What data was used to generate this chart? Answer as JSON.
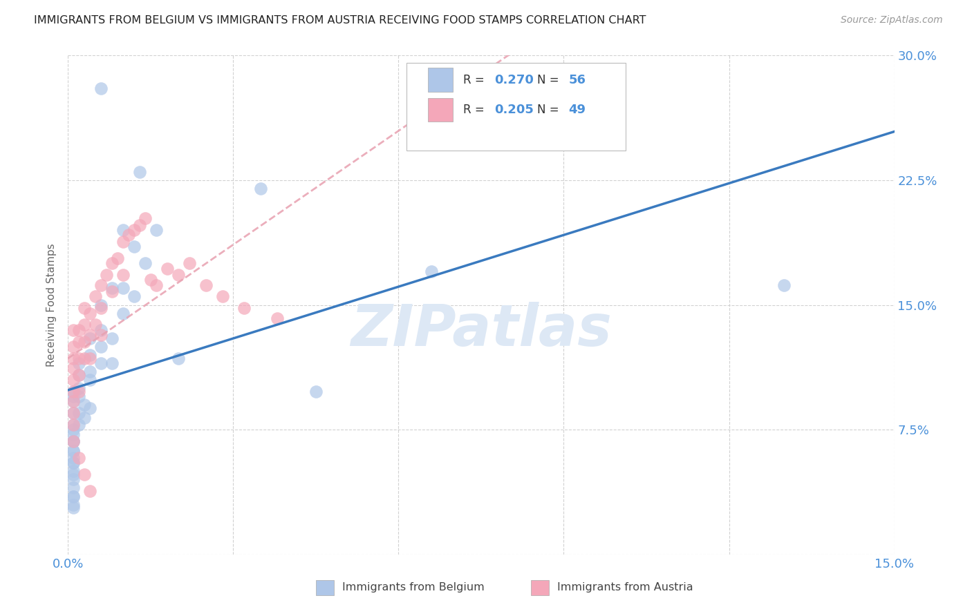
{
  "title": "IMMIGRANTS FROM BELGIUM VS IMMIGRANTS FROM AUSTRIA RECEIVING FOOD STAMPS CORRELATION CHART",
  "source": "Source: ZipAtlas.com",
  "ylabel": "Receiving Food Stamps",
  "xlim": [
    0.0,
    0.15
  ],
  "ylim": [
    0.0,
    0.3
  ],
  "xticks": [
    0.0,
    0.03,
    0.06,
    0.09,
    0.12,
    0.15
  ],
  "yticks": [
    0.0,
    0.075,
    0.15,
    0.225,
    0.3
  ],
  "R_belgium": 0.27,
  "N_belgium": 56,
  "R_austria": 0.205,
  "N_austria": 49,
  "color_belgium": "#aec6e8",
  "color_austria": "#f4a7b9",
  "trend_belgium_color": "#3a7abf",
  "trend_austria_color": "#e05577",
  "trend_austria_dashed_color": "#e8a0b0",
  "background_color": "#ffffff",
  "grid_color": "#cccccc",
  "legend_labels": [
    "Immigrants from Belgium",
    "Immigrants from Austria"
  ],
  "belgium_x": [
    0.006,
    0.013,
    0.016,
    0.035,
    0.066,
    0.01,
    0.012,
    0.014,
    0.01,
    0.012,
    0.006,
    0.008,
    0.01,
    0.006,
    0.008,
    0.004,
    0.006,
    0.008,
    0.004,
    0.006,
    0.002,
    0.004,
    0.002,
    0.004,
    0.002,
    0.002,
    0.003,
    0.004,
    0.003,
    0.002,
    0.001,
    0.002,
    0.001,
    0.001,
    0.001,
    0.001,
    0.001,
    0.001,
    0.001,
    0.001,
    0.001,
    0.001,
    0.13,
    0.02,
    0.045,
    0.001,
    0.001,
    0.001,
    0.001,
    0.001,
    0.001,
    0.001,
    0.001,
    0.001,
    0.001,
    0.001
  ],
  "belgium_y": [
    0.28,
    0.23,
    0.195,
    0.22,
    0.17,
    0.195,
    0.185,
    0.175,
    0.16,
    0.155,
    0.15,
    0.16,
    0.145,
    0.135,
    0.13,
    0.13,
    0.125,
    0.115,
    0.12,
    0.115,
    0.115,
    0.11,
    0.108,
    0.105,
    0.1,
    0.095,
    0.09,
    0.088,
    0.082,
    0.078,
    0.095,
    0.085,
    0.075,
    0.068,
    0.062,
    0.058,
    0.055,
    0.05,
    0.045,
    0.04,
    0.035,
    0.03,
    0.162,
    0.118,
    0.098,
    0.098,
    0.092,
    0.085,
    0.078,
    0.072,
    0.068,
    0.062,
    0.055,
    0.048,
    0.035,
    0.028
  ],
  "austria_x": [
    0.001,
    0.001,
    0.001,
    0.001,
    0.001,
    0.001,
    0.001,
    0.001,
    0.001,
    0.002,
    0.002,
    0.002,
    0.002,
    0.002,
    0.003,
    0.003,
    0.003,
    0.003,
    0.004,
    0.004,
    0.004,
    0.005,
    0.005,
    0.006,
    0.006,
    0.006,
    0.007,
    0.008,
    0.008,
    0.009,
    0.01,
    0.01,
    0.011,
    0.012,
    0.013,
    0.014,
    0.015,
    0.016,
    0.018,
    0.02,
    0.022,
    0.025,
    0.028,
    0.032,
    0.038,
    0.001,
    0.002,
    0.003,
    0.004
  ],
  "austria_y": [
    0.135,
    0.125,
    0.118,
    0.112,
    0.105,
    0.098,
    0.092,
    0.085,
    0.078,
    0.135,
    0.128,
    0.118,
    0.108,
    0.098,
    0.148,
    0.138,
    0.128,
    0.118,
    0.145,
    0.132,
    0.118,
    0.155,
    0.138,
    0.162,
    0.148,
    0.132,
    0.168,
    0.175,
    0.158,
    0.178,
    0.188,
    0.168,
    0.192,
    0.195,
    0.198,
    0.202,
    0.165,
    0.162,
    0.172,
    0.168,
    0.175,
    0.162,
    0.155,
    0.148,
    0.142,
    0.068,
    0.058,
    0.048,
    0.038
  ]
}
